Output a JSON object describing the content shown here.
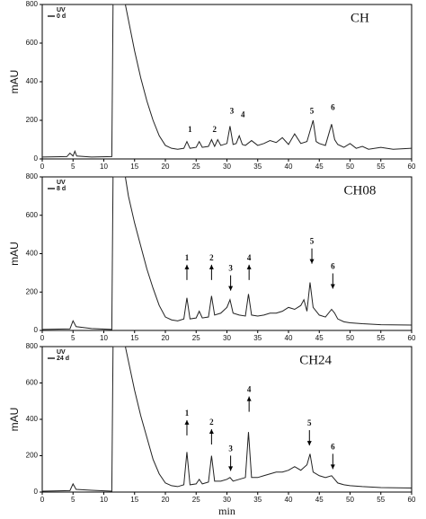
{
  "chart_data": [
    {
      "type": "line",
      "title": "CH",
      "ylabel": "mAU",
      "legend": {
        "label": "0 d"
      },
      "x": [
        0,
        4,
        4.5,
        5,
        5.3,
        5.6,
        8,
        11.3,
        11.5,
        13.5,
        14,
        15,
        16,
        17,
        18,
        19,
        20,
        21,
        22,
        23,
        23.5,
        24,
        25,
        25.5,
        26,
        27,
        27.5,
        28,
        28.5,
        29,
        30,
        30.5,
        31,
        31.5,
        32,
        32.5,
        33,
        34,
        35,
        36,
        37,
        38,
        39,
        40,
        41,
        42,
        43,
        44,
        44.5,
        45,
        46,
        47,
        47.5,
        48,
        49,
        50,
        51,
        52,
        53,
        55,
        57,
        60
      ],
      "series": [
        {
          "name": "UV",
          "color": "#222222",
          "values": [
            10,
            12,
            30,
            15,
            40,
            15,
            10,
            12,
            800,
            800,
            720,
            560,
            420,
            300,
            200,
            120,
            70,
            55,
            50,
            55,
            90,
            55,
            60,
            90,
            60,
            65,
            100,
            65,
            100,
            70,
            80,
            170,
            75,
            80,
            120,
            75,
            70,
            95,
            70,
            80,
            95,
            85,
            110,
            75,
            130,
            80,
            90,
            200,
            90,
            80,
            70,
            180,
            100,
            75,
            60,
            80,
            55,
            65,
            50,
            60,
            50,
            55
          ]
        }
      ],
      "xlim": [
        0,
        60
      ],
      "xticks": [
        0,
        5,
        10,
        15,
        20,
        25,
        30,
        35,
        40,
        45,
        50,
        55,
        60
      ],
      "ylim": [
        0,
        800
      ],
      "yticks": [
        0,
        200,
        400,
        600,
        800
      ],
      "annotations": [
        {
          "text": "1",
          "x": 24,
          "y": 150
        },
        {
          "text": "2",
          "x": 28,
          "y": 150
        },
        {
          "text": "3",
          "x": 30.8,
          "y": 245
        },
        {
          "text": "4",
          "x": 32.6,
          "y": 225
        },
        {
          "text": "5",
          "x": 43.8,
          "y": 245
        },
        {
          "text": "6",
          "x": 47.2,
          "y": 262
        }
      ]
    },
    {
      "type": "line",
      "title": "CH08",
      "ylabel": "mAU",
      "legend": {
        "label": "8 d"
      },
      "x": [
        0,
        4.5,
        5,
        5.5,
        8,
        11.3,
        11.5,
        13.5,
        14,
        15,
        16,
        17,
        18,
        19,
        20,
        21,
        22,
        23,
        23.5,
        24,
        25,
        25.5,
        26,
        27,
        27.5,
        28,
        29,
        30,
        30.5,
        31,
        32,
        33,
        33.5,
        34,
        35,
        36,
        37,
        38,
        39,
        40,
        41,
        42,
        42.5,
        43,
        43.5,
        44,
        45,
        46,
        47,
        47.5,
        48,
        49,
        50,
        52,
        55,
        60
      ],
      "series": [
        {
          "name": "UV",
          "color": "#222222",
          "values": [
            5,
            8,
            50,
            20,
            10,
            5,
            800,
            800,
            700,
            560,
            440,
            320,
            220,
            130,
            70,
            55,
            50,
            60,
            170,
            60,
            65,
            100,
            65,
            70,
            180,
            80,
            90,
            120,
            160,
            90,
            80,
            75,
            190,
            80,
            75,
            80,
            90,
            90,
            100,
            120,
            110,
            130,
            160,
            100,
            250,
            120,
            80,
            70,
            110,
            90,
            60,
            45,
            40,
            35,
            30,
            28
          ]
        }
      ],
      "xlim": [
        0,
        60
      ],
      "xticks": [
        0,
        5,
        10,
        15,
        20,
        25,
        30,
        35,
        40,
        45,
        50,
        55,
        60
      ],
      "ylim": [
        0,
        800
      ],
      "yticks": [
        0,
        200,
        400,
        600,
        800
      ],
      "annotations": [
        {
          "text": "1",
          "x": 23.5,
          "y": 375,
          "arrow": "up"
        },
        {
          "text": "2",
          "x": 27.5,
          "y": 375,
          "arrow": "up"
        },
        {
          "text": "3",
          "x": 30.6,
          "y": 320,
          "arrow": "down"
        },
        {
          "text": "4",
          "x": 33.6,
          "y": 375,
          "arrow": "up"
        },
        {
          "text": "5",
          "x": 43.8,
          "y": 460,
          "arrow": "down"
        },
        {
          "text": "6",
          "x": 47.2,
          "y": 330,
          "arrow": "down"
        }
      ]
    },
    {
      "type": "line",
      "title": "CH24",
      "ylabel": "mAU",
      "xlabel": "min",
      "legend": {
        "label": "24 d"
      },
      "x": [
        0,
        4.5,
        5,
        5.5,
        8,
        11.3,
        11.5,
        13.5,
        14,
        15,
        16,
        17,
        18,
        19,
        20,
        21,
        22,
        23,
        23.5,
        24,
        25,
        25.5,
        26,
        27,
        27.5,
        28,
        29,
        30,
        30.5,
        31,
        32,
        33,
        33.5,
        34,
        35,
        36,
        37,
        38,
        39,
        40,
        41,
        42,
        43,
        43.5,
        44,
        45,
        46,
        47,
        47.5,
        48,
        49,
        50,
        52,
        55,
        60
      ],
      "series": [
        {
          "name": "UV",
          "color": "#222222",
          "values": [
            5,
            8,
            45,
            15,
            10,
            5,
            800,
            800,
            720,
            560,
            420,
            300,
            180,
            100,
            50,
            35,
            30,
            40,
            220,
            40,
            45,
            70,
            45,
            55,
            200,
            60,
            60,
            70,
            80,
            60,
            70,
            80,
            330,
            80,
            80,
            90,
            100,
            110,
            110,
            120,
            140,
            120,
            150,
            210,
            110,
            90,
            80,
            90,
            70,
            50,
            40,
            35,
            30,
            25,
            22
          ]
        }
      ],
      "xlim": [
        0,
        60
      ],
      "xticks": [
        0,
        5,
        10,
        15,
        20,
        25,
        30,
        35,
        40,
        45,
        50,
        55,
        60
      ],
      "ylim": [
        0,
        800
      ],
      "yticks": [
        0,
        200,
        400,
        600,
        800
      ],
      "annotations": [
        {
          "text": "1",
          "x": 23.5,
          "y": 430,
          "arrow": "up"
        },
        {
          "text": "2",
          "x": 27.5,
          "y": 380,
          "arrow": "up"
        },
        {
          "text": "3",
          "x": 30.6,
          "y": 235,
          "arrow": "down"
        },
        {
          "text": "4",
          "x": 33.6,
          "y": 560,
          "arrow": "up"
        },
        {
          "text": "5",
          "x": 43.4,
          "y": 375,
          "arrow": "down"
        },
        {
          "text": "6",
          "x": 47.2,
          "y": 245,
          "arrow": "down"
        }
      ]
    }
  ]
}
